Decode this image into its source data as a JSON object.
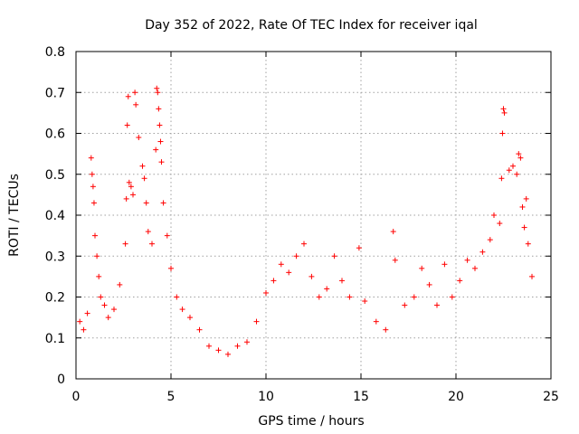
{
  "chart_data": {
    "type": "scatter",
    "title": "Day 352 of 2022, Rate Of TEC Index for receiver iqal",
    "xlabel": "GPS time / hours",
    "ylabel": "ROTI / TECUs",
    "xlim": [
      0,
      25
    ],
    "ylim": [
      0,
      0.8
    ],
    "x_ticks": [
      "0",
      "5",
      "10",
      "15",
      "20",
      "25"
    ],
    "y_ticks": [
      "0",
      "0.1",
      "0.2",
      "0.3",
      "0.4",
      "0.5",
      "0.6",
      "0.7",
      "0.8"
    ],
    "grid": true,
    "marker": "+",
    "color": "#ff0000",
    "series": [
      {
        "points": [
          [
            0.2,
            0.14
          ],
          [
            0.4,
            0.12
          ],
          [
            0.6,
            0.16
          ],
          [
            0.8,
            0.54
          ],
          [
            0.85,
            0.5
          ],
          [
            0.9,
            0.47
          ],
          [
            0.95,
            0.43
          ],
          [
            1.0,
            0.35
          ],
          [
            1.1,
            0.3
          ],
          [
            1.2,
            0.25
          ],
          [
            1.3,
            0.2
          ],
          [
            1.5,
            0.18
          ],
          [
            1.7,
            0.15
          ],
          [
            2.0,
            0.17
          ],
          [
            2.3,
            0.23
          ],
          [
            2.6,
            0.33
          ],
          [
            2.65,
            0.44
          ],
          [
            2.7,
            0.62
          ],
          [
            2.75,
            0.69
          ],
          [
            2.8,
            0.48
          ],
          [
            2.9,
            0.47
          ],
          [
            3.0,
            0.45
          ],
          [
            3.1,
            0.7
          ],
          [
            3.15,
            0.67
          ],
          [
            3.3,
            0.59
          ],
          [
            3.5,
            0.52
          ],
          [
            3.6,
            0.49
          ],
          [
            3.7,
            0.43
          ],
          [
            3.8,
            0.36
          ],
          [
            4.0,
            0.33
          ],
          [
            4.2,
            0.56
          ],
          [
            4.25,
            0.71
          ],
          [
            4.3,
            0.7
          ],
          [
            4.35,
            0.66
          ],
          [
            4.4,
            0.62
          ],
          [
            4.45,
            0.58
          ],
          [
            4.5,
            0.53
          ],
          [
            4.6,
            0.43
          ],
          [
            4.8,
            0.35
          ],
          [
            5.0,
            0.27
          ],
          [
            5.3,
            0.2
          ],
          [
            5.6,
            0.17
          ],
          [
            6.0,
            0.15
          ],
          [
            6.5,
            0.12
          ],
          [
            7.0,
            0.08
          ],
          [
            7.5,
            0.07
          ],
          [
            8.0,
            0.06
          ],
          [
            8.5,
            0.08
          ],
          [
            9.0,
            0.09
          ],
          [
            9.5,
            0.14
          ],
          [
            10.0,
            0.21
          ],
          [
            10.4,
            0.24
          ],
          [
            10.8,
            0.28
          ],
          [
            11.2,
            0.26
          ],
          [
            11.6,
            0.3
          ],
          [
            12.0,
            0.33
          ],
          [
            12.4,
            0.25
          ],
          [
            12.8,
            0.2
          ],
          [
            13.2,
            0.22
          ],
          [
            13.6,
            0.3
          ],
          [
            14.0,
            0.24
          ],
          [
            14.4,
            0.2
          ],
          [
            14.9,
            0.32
          ],
          [
            15.2,
            0.19
          ],
          [
            15.8,
            0.14
          ],
          [
            16.3,
            0.12
          ],
          [
            16.7,
            0.36
          ],
          [
            16.8,
            0.29
          ],
          [
            17.3,
            0.18
          ],
          [
            17.8,
            0.2
          ],
          [
            18.2,
            0.27
          ],
          [
            18.6,
            0.23
          ],
          [
            19.0,
            0.18
          ],
          [
            19.4,
            0.28
          ],
          [
            19.8,
            0.2
          ],
          [
            20.2,
            0.24
          ],
          [
            20.6,
            0.29
          ],
          [
            21.0,
            0.27
          ],
          [
            21.4,
            0.31
          ],
          [
            21.8,
            0.34
          ],
          [
            22.0,
            0.4
          ],
          [
            22.3,
            0.38
          ],
          [
            22.4,
            0.49
          ],
          [
            22.45,
            0.6
          ],
          [
            22.5,
            0.66
          ],
          [
            22.55,
            0.65
          ],
          [
            22.8,
            0.51
          ],
          [
            23.0,
            0.52
          ],
          [
            23.2,
            0.5
          ],
          [
            23.3,
            0.55
          ],
          [
            23.4,
            0.54
          ],
          [
            23.5,
            0.42
          ],
          [
            23.6,
            0.37
          ],
          [
            23.7,
            0.44
          ],
          [
            23.8,
            0.33
          ],
          [
            24.0,
            0.25
          ]
        ]
      }
    ]
  }
}
